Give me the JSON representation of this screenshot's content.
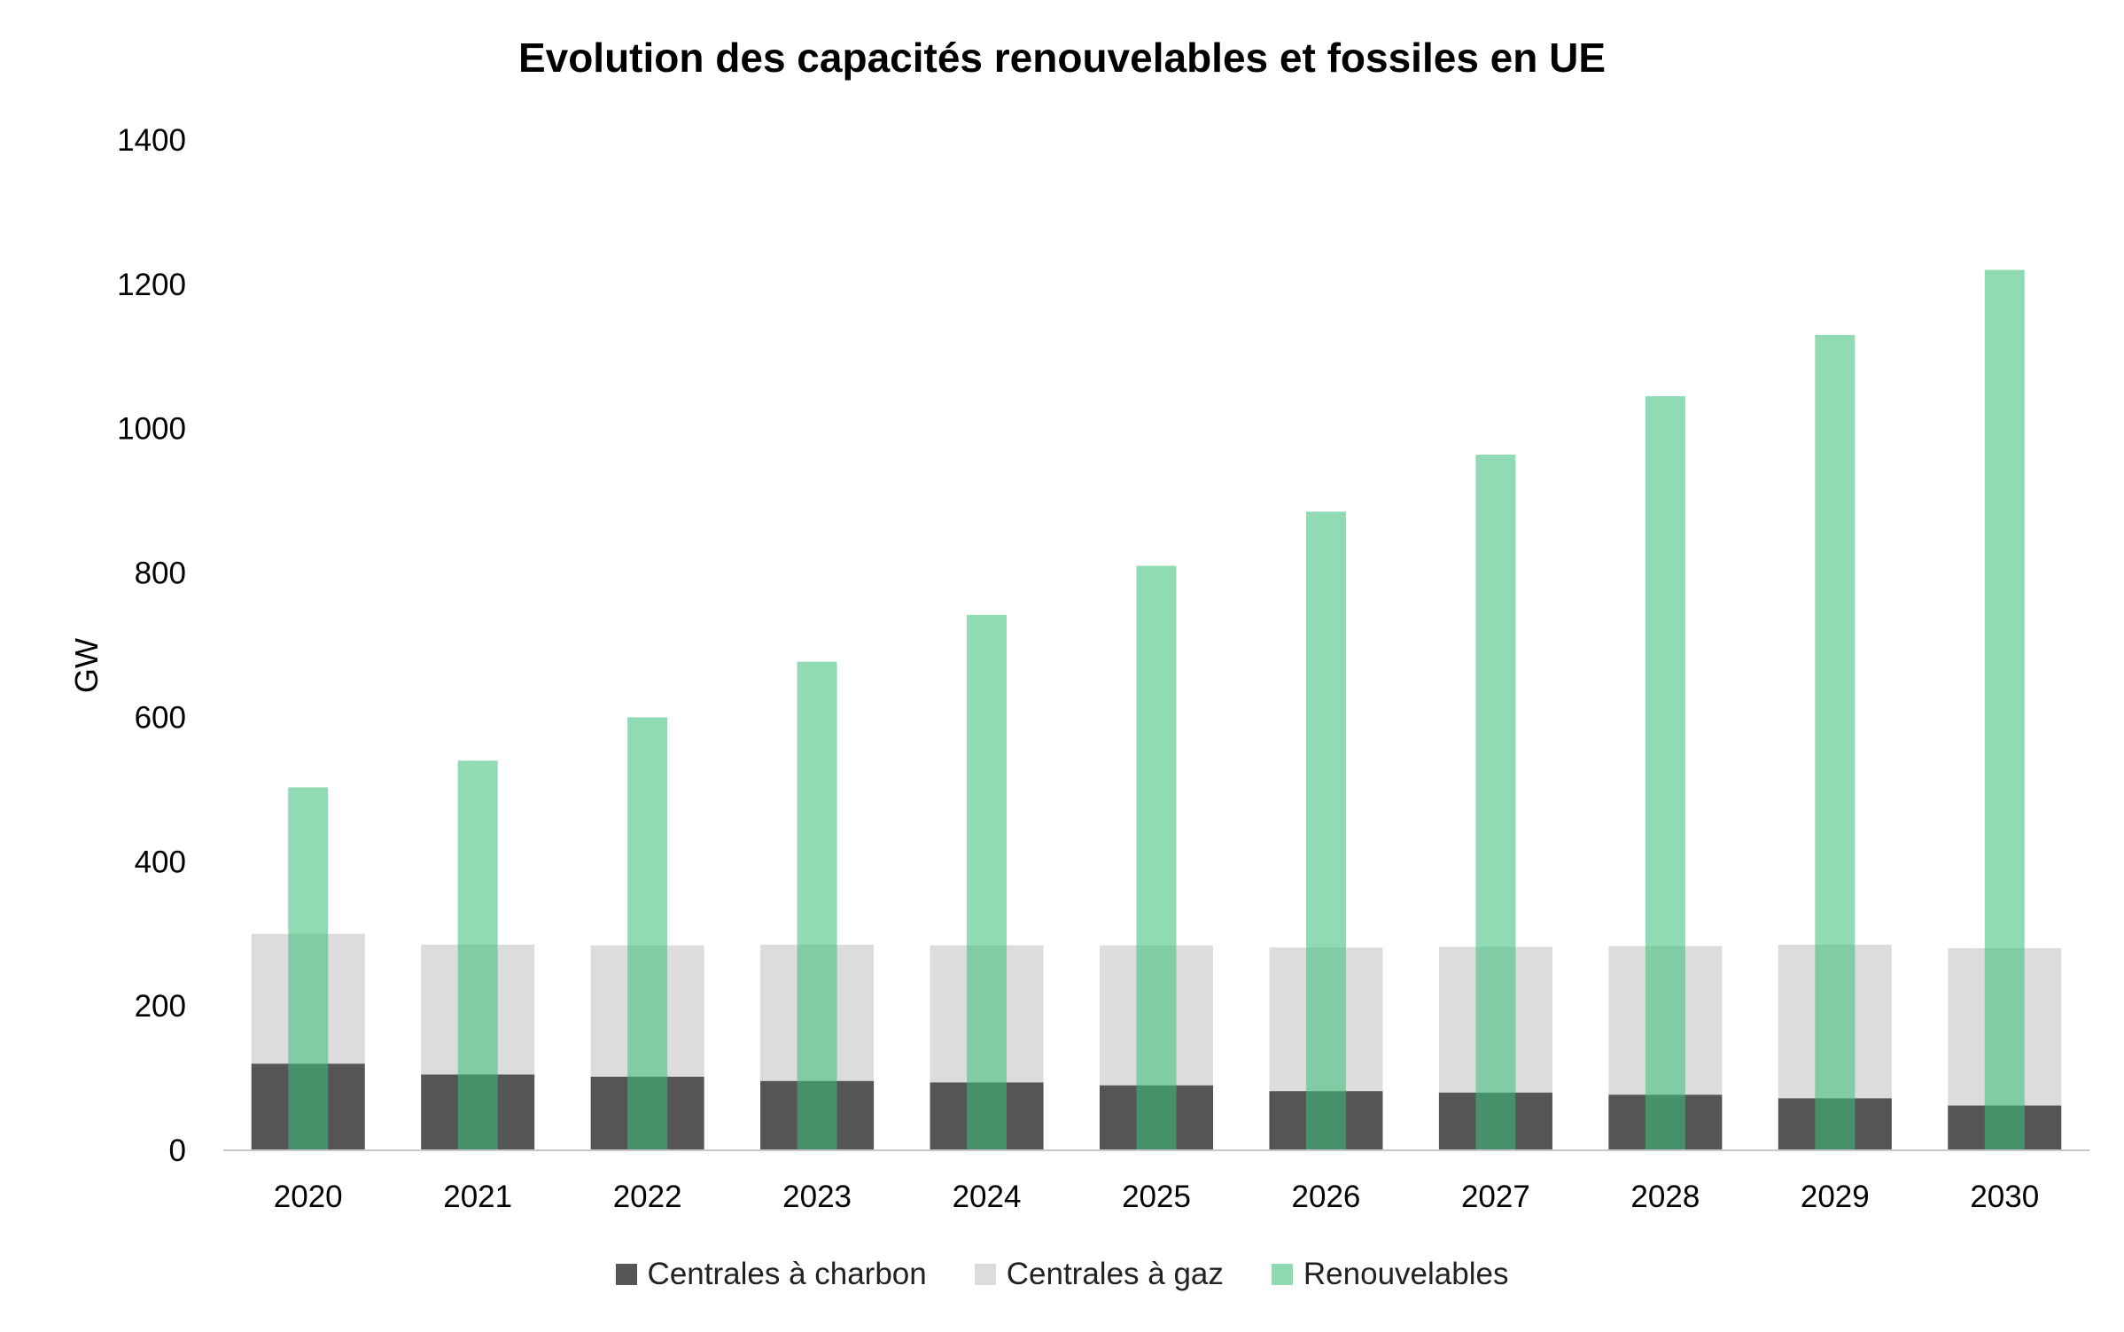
{
  "chart_data": {
    "type": "bar",
    "title": "Evolution des capacités renouvelables et fossiles en UE",
    "ylabel": "GW",
    "xlabel": "",
    "ylim": [
      0,
      1400
    ],
    "yticks": [
      0,
      200,
      400,
      600,
      800,
      1000,
      1200,
      1400
    ],
    "categories": [
      "2020",
      "2021",
      "2022",
      "2023",
      "2024",
      "2025",
      "2026",
      "2027",
      "2028",
      "2029",
      "2030"
    ],
    "series": [
      {
        "name": "Centrales à charbon",
        "color": "#555555",
        "values": [
          120,
          105,
          102,
          96,
          94,
          90,
          82,
          80,
          77,
          72,
          62
        ]
      },
      {
        "name": "Centrales à gaz",
        "color": "#dcdcdc",
        "values": [
          300,
          285,
          284,
          285,
          284,
          284,
          281,
          282,
          283,
          285,
          280
        ]
      },
      {
        "name": "Renouvelables",
        "color": "#8fdab0",
        "values": [
          503,
          540,
          600,
          677,
          742,
          810,
          885,
          964,
          1045,
          1130,
          1220
        ]
      }
    ],
    "legend_position": "bottom",
    "grid": false
  }
}
